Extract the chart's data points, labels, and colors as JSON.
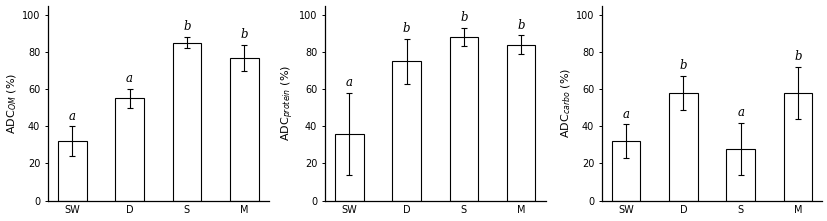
{
  "charts": [
    {
      "ylabel_main": "ADC",
      "ylabel_sub": "OM",
      "values": [
        32,
        55,
        85,
        77
      ],
      "errors": [
        8,
        5,
        3,
        7
      ],
      "letters": [
        "a",
        "a",
        "b",
        "b"
      ],
      "categories": [
        "SW",
        "D",
        "S",
        "M"
      ],
      "ylim": [
        0,
        105
      ],
      "yticks": [
        0,
        20,
        40,
        60,
        80,
        100
      ]
    },
    {
      "ylabel_main": "ADC",
      "ylabel_sub": "protein",
      "values": [
        36,
        75,
        88,
        84
      ],
      "errors": [
        22,
        12,
        5,
        5
      ],
      "letters": [
        "a",
        "b",
        "b",
        "b"
      ],
      "categories": [
        "SW",
        "D",
        "S",
        "M"
      ],
      "ylim": [
        0,
        105
      ],
      "yticks": [
        0,
        20,
        40,
        60,
        80,
        100
      ]
    },
    {
      "ylabel_main": "ADC",
      "ylabel_sub": "carbo",
      "values": [
        32,
        58,
        28,
        58
      ],
      "errors": [
        9,
        9,
        14,
        14
      ],
      "letters": [
        "a",
        "b",
        "a",
        "b"
      ],
      "categories": [
        "SW",
        "D",
        "S",
        "M"
      ],
      "ylim": [
        0,
        105
      ],
      "yticks": [
        0,
        20,
        40,
        60,
        80,
        100
      ]
    }
  ],
  "bar_color": "#ffffff",
  "bar_edgecolor": "#000000",
  "bar_width": 0.5,
  "letter_fontsize": 8.5,
  "tick_fontsize": 7,
  "ylabel_fontsize": 8,
  "background_color": "#ffffff",
  "figsize": [
    8.28,
    2.21
  ],
  "dpi": 100
}
